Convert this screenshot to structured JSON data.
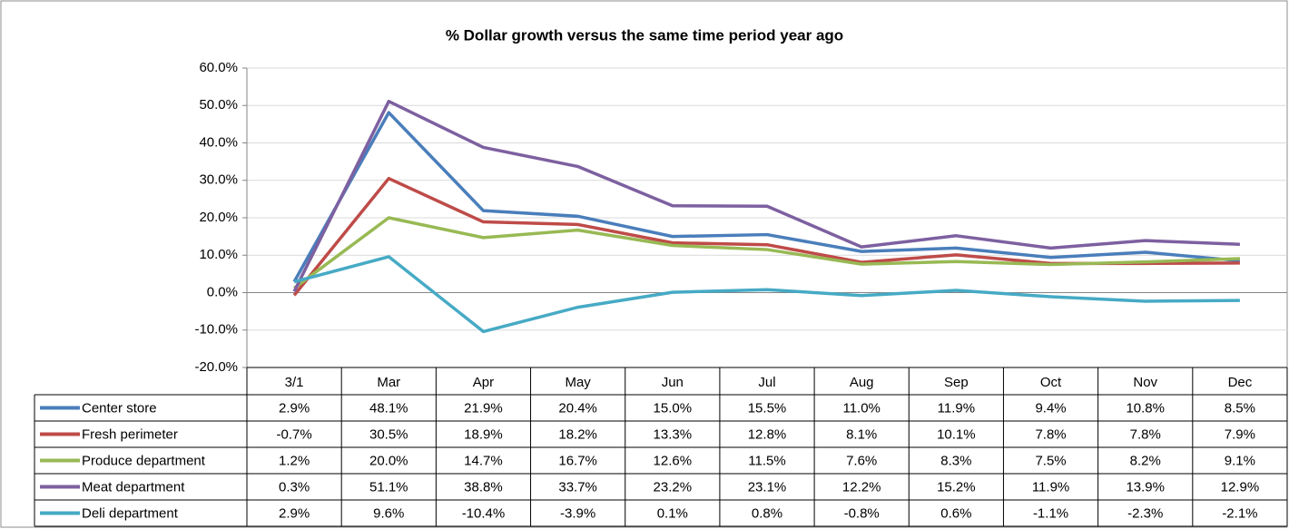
{
  "chart_data": {
    "type": "line",
    "title": "% Dollar growth versus the same time period year ago",
    "categories": [
      "3/1",
      "Mar",
      "Apr",
      "May",
      "Jun",
      "Jul",
      "Aug",
      "Sep",
      "Oct",
      "Nov",
      "Dec"
    ],
    "series": [
      {
        "name": "Center store",
        "color": "#4a7ebb",
        "values": [
          2.9,
          48.1,
          21.9,
          20.4,
          15.0,
          15.5,
          11.0,
          11.9,
          9.4,
          10.8,
          8.5
        ],
        "value_labels": [
          "2.9%",
          "48.1%",
          "21.9%",
          "20.4%",
          "15.0%",
          "15.5%",
          "11.0%",
          "11.9%",
          "9.4%",
          "10.8%",
          "8.5%"
        ]
      },
      {
        "name": "Fresh perimeter",
        "color": "#be4b48",
        "values": [
          -0.7,
          30.5,
          18.9,
          18.2,
          13.3,
          12.8,
          8.1,
          10.1,
          7.8,
          7.8,
          7.9
        ],
        "value_labels": [
          "-0.7%",
          "30.5%",
          "18.9%",
          "18.2%",
          "13.3%",
          "12.8%",
          "8.1%",
          "10.1%",
          "7.8%",
          "7.8%",
          "7.9%"
        ]
      },
      {
        "name": "Produce department",
        "color": "#98b954",
        "values": [
          1.2,
          20.0,
          14.7,
          16.7,
          12.6,
          11.5,
          7.6,
          8.3,
          7.5,
          8.2,
          9.1
        ],
        "value_labels": [
          "1.2%",
          "20.0%",
          "14.7%",
          "16.7%",
          "12.6%",
          "11.5%",
          "7.6%",
          "8.3%",
          "7.5%",
          "8.2%",
          "9.1%"
        ]
      },
      {
        "name": "Meat department",
        "color": "#7d60a0",
        "values": [
          0.3,
          51.1,
          38.8,
          33.7,
          23.2,
          23.1,
          12.2,
          15.2,
          11.9,
          13.9,
          12.9
        ],
        "value_labels": [
          "0.3%",
          "51.1%",
          "38.8%",
          "33.7%",
          "23.2%",
          "23.1%",
          "12.2%",
          "15.2%",
          "11.9%",
          "13.9%",
          "12.9%"
        ]
      },
      {
        "name": "Deli department",
        "color": "#46aac5",
        "values": [
          2.9,
          9.6,
          -10.4,
          -3.9,
          0.1,
          0.8,
          -0.8,
          0.6,
          -1.1,
          -2.3,
          -2.1
        ],
        "value_labels": [
          "2.9%",
          "9.6%",
          "-10.4%",
          "-3.9%",
          "0.1%",
          "0.8%",
          "-0.8%",
          "0.6%",
          "-1.1%",
          "-2.3%",
          "-2.1%"
        ]
      }
    ],
    "ylim": [
      -20,
      60
    ],
    "yticks": [
      {
        "value": -20,
        "label": "-20.0%"
      },
      {
        "value": -10,
        "label": "-10.0%"
      },
      {
        "value": 0,
        "label": "0.0%"
      },
      {
        "value": 10,
        "label": "10.0%"
      },
      {
        "value": 20,
        "label": "20.0%"
      },
      {
        "value": 30,
        "label": "30.0%"
      },
      {
        "value": 40,
        "label": "40.0%"
      },
      {
        "value": 50,
        "label": "50.0%"
      },
      {
        "value": 60,
        "label": "60.0%"
      }
    ],
    "grid": true
  }
}
